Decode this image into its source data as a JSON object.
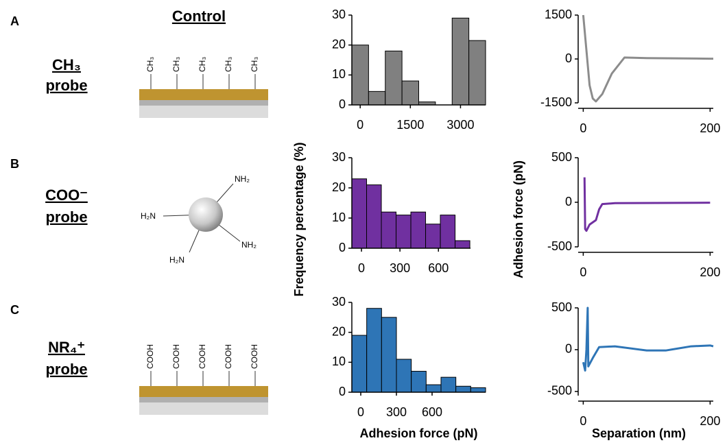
{
  "control_title": "Control",
  "panels": [
    {
      "letter": "A",
      "probe": [
        "CH₃",
        "probe"
      ],
      "diagram_labels": [
        "CH₃",
        "CH₃",
        "CH₃",
        "CH₃",
        "CH₃"
      ]
    },
    {
      "letter": "B",
      "probe": [
        "COO⁻",
        "probe"
      ],
      "diagram_labels": [
        "NH₂",
        "H₂N",
        "NH₂",
        "H₂N"
      ]
    },
    {
      "letter": "C",
      "probe": [
        "NR₄⁺",
        "probe"
      ],
      "diagram_labels": [
        "COOH",
        "COOH",
        "COOH",
        "COOH",
        "COOH"
      ]
    }
  ],
  "chart_data": [
    {
      "type": "histogram",
      "bins": [
        -250,
        250,
        750,
        1250,
        1750,
        2250,
        2750,
        3250,
        3750
      ],
      "values": [
        20,
        4.5,
        18,
        8,
        1,
        0,
        29,
        21.5
      ],
      "color": "#808080",
      "xlim": [
        -250,
        3750
      ],
      "xticks": [
        0,
        1500,
        3000
      ],
      "ylim": [
        0,
        30
      ],
      "yticks": [
        0,
        10,
        20,
        30
      ]
    },
    {
      "type": "line",
      "x": [
        0,
        5,
        10,
        15,
        20,
        30,
        45,
        65,
        100,
        150,
        200,
        205
      ],
      "values": [
        1500,
        300,
        -900,
        -1350,
        -1450,
        -1200,
        -500,
        50,
        30,
        20,
        10,
        10
      ],
      "color": "#8c8c8c",
      "xlim": [
        -8,
        205
      ],
      "xticks": [
        0,
        200
      ],
      "ylim": [
        -1500,
        1500
      ],
      "yticks": [
        -1500,
        0,
        1500
      ]
    },
    {
      "type": "histogram",
      "bins": [
        -75,
        40,
        155,
        270,
        385,
        500,
        615,
        730,
        845
      ],
      "values": [
        23,
        21,
        12,
        11,
        12,
        8,
        11,
        2.5
      ],
      "color": "#7030a0",
      "xlim": [
        -75,
        850
      ],
      "xticks": [
        0,
        300,
        600
      ],
      "ylim": [
        0,
        30
      ],
      "yticks": [
        0,
        10,
        20,
        30
      ],
      "ylabel": "Frequency percentage (%)"
    },
    {
      "type": "line",
      "x": [
        2,
        3,
        5,
        10,
        20,
        25,
        30,
        50,
        200
      ],
      "values": [
        280,
        -300,
        -320,
        -250,
        -200,
        -80,
        -20,
        -10,
        -5
      ],
      "color": "#7030a0",
      "xlim": [
        -8,
        205
      ],
      "xticks": [
        0,
        200
      ],
      "ylim": [
        -500,
        500
      ],
      "yticks": [
        -500,
        0,
        500
      ],
      "ylabel": "Adhesion force (pN)"
    },
    {
      "type": "histogram",
      "bins": [
        -75,
        50,
        175,
        300,
        425,
        550,
        675,
        800,
        925,
        1050
      ],
      "values": [
        19,
        28,
        25,
        11,
        7,
        2.5,
        5,
        2,
        1.5
      ],
      "color": "#2e75b6",
      "xlim": [
        -75,
        1050
      ],
      "xticks": [
        0,
        300,
        600
      ],
      "ylim": [
        0,
        30
      ],
      "yticks": [
        0,
        10,
        20,
        30
      ],
      "xlabel": "Adhesion force (pN)"
    },
    {
      "type": "line",
      "x": [
        0,
        3,
        5,
        7,
        8,
        15,
        25,
        50,
        100,
        130,
        170,
        200,
        205
      ],
      "values": [
        -150,
        -250,
        0,
        500,
        -200,
        -100,
        30,
        40,
        -10,
        -10,
        40,
        50,
        40
      ],
      "color": "#2e75b6",
      "xlim": [
        -8,
        205
      ],
      "xticks": [
        0,
        200
      ],
      "ylim": [
        -550,
        500
      ],
      "yticks": [
        -500,
        0,
        500
      ],
      "xlabel": "Separation (nm)"
    }
  ]
}
